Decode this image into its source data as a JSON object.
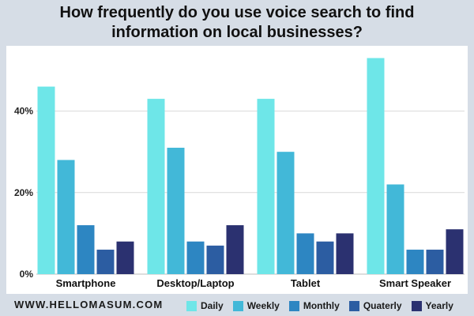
{
  "title_lines": [
    "How frequently do you use voice search to find",
    "information on local businesses?"
  ],
  "site": "WWW.HELLOMASUM.COM",
  "colors": {
    "Daily": "#6ee6e8",
    "Weekly": "#42b8d8",
    "Monthly": "#2d86c2",
    "Quaterly": "#2c5da2",
    "Yearly": "#2b3170"
  },
  "chart_data": {
    "type": "bar",
    "categories": [
      "Smartphone",
      "Desktop/Laptop",
      "Tablet",
      "Smart Speaker"
    ],
    "series": [
      {
        "name": "Daily",
        "values": [
          46,
          43,
          43,
          53
        ]
      },
      {
        "name": "Weekly",
        "values": [
          28,
          31,
          30,
          22
        ]
      },
      {
        "name": "Monthly",
        "values": [
          12,
          8,
          10,
          6
        ]
      },
      {
        "name": "Quaterly",
        "values": [
          6,
          7,
          8,
          6
        ]
      },
      {
        "name": "Yearly",
        "values": [
          8,
          12,
          10,
          11
        ]
      }
    ],
    "ylim": [
      0,
      56
    ],
    "yticks": [
      0,
      20,
      40
    ],
    "ytick_labels": [
      "0%",
      "20%",
      "40%"
    ],
    "grid": true,
    "legend_position": "bottom",
    "title": "How frequently do you use voice search to find information on local businesses?"
  }
}
